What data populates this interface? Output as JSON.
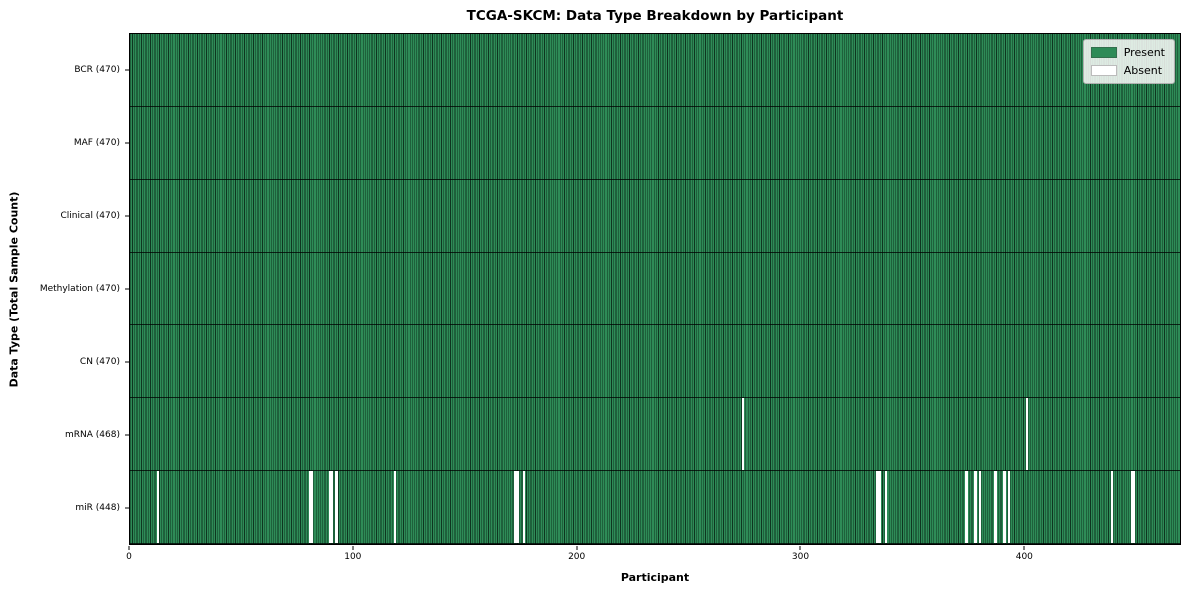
{
  "title": "TCGA-SKCM: Data Type Breakdown by Participant",
  "xlabel": "Participant",
  "ylabel": "Data Type (Total Sample Count)",
  "colors": {
    "present": "#2e8b57",
    "absent": "#ffffff",
    "cell_edge": "#16402a",
    "row_divider": "#0d2417",
    "spine": "#000000",
    "legend_bg": "#f4f4f1",
    "legend_border": "#b0b0b0"
  },
  "chart_data": {
    "type": "heatmap",
    "title": "TCGA-SKCM: Data Type Breakdown by Participant",
    "xlabel": "Participant",
    "ylabel": "Data Type (Total Sample Count)",
    "n_participants": 470,
    "x_range": [
      0,
      470
    ],
    "x_ticks": [
      0,
      100,
      200,
      300,
      400
    ],
    "grid": false,
    "legend_position": "upper right",
    "legend": [
      {
        "label": "Present",
        "color": "#2e8b57"
      },
      {
        "label": "Absent",
        "color": "#ffffff"
      }
    ],
    "rows": [
      {
        "label": "BCR (470)",
        "data_type": "BCR",
        "present_count": 470,
        "absent_participants": []
      },
      {
        "label": "MAF (470)",
        "data_type": "MAF",
        "present_count": 470,
        "absent_participants": []
      },
      {
        "label": "Clinical (470)",
        "data_type": "Clinical",
        "present_count": 470,
        "absent_participants": []
      },
      {
        "label": "Methylation (470)",
        "data_type": "Methylation",
        "present_count": 470,
        "absent_participants": []
      },
      {
        "label": "CN (470)",
        "data_type": "CN",
        "present_count": 470,
        "absent_participants": []
      },
      {
        "label": "mRNA (468)",
        "data_type": "mRNA",
        "present_count": 468,
        "absent_participants": [
          274,
          401
        ]
      },
      {
        "label": "miR (448)",
        "data_type": "miR",
        "present_count": 448,
        "absent_participants": [
          12,
          80,
          81,
          89,
          90,
          92,
          118,
          172,
          173,
          176,
          334,
          335,
          338,
          374,
          378,
          380,
          387,
          391,
          393,
          439,
          448,
          449
        ]
      }
    ]
  }
}
